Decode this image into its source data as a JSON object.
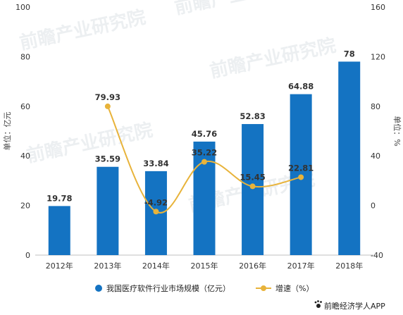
{
  "chart_data": {
    "type": "bar+line",
    "categories": [
      "2012年",
      "2013年",
      "2014年",
      "2015年",
      "2016年",
      "2017年",
      "2018年"
    ],
    "series": [
      {
        "name": "我国医疗软件行业市场规模（亿元）",
        "type": "bar",
        "axis": "left",
        "values": [
          19.78,
          35.59,
          33.84,
          45.76,
          52.83,
          64.88,
          78
        ],
        "labels": [
          "19.78",
          "35.59",
          "33.84",
          "45.76",
          "52.83",
          "64.88",
          "78"
        ],
        "color": "#1473C2"
      },
      {
        "name": "增速（%）",
        "type": "line",
        "axis": "right",
        "values": [
          null,
          79.93,
          -4.92,
          35.22,
          15.45,
          22.81,
          null
        ],
        "labels": [
          "",
          "79.93",
          "-4.92",
          "35.22",
          "15.45",
          "22.81",
          ""
        ],
        "color": "#E8B33A"
      }
    ],
    "ylabel": "单位：亿元",
    "y2label": "单位：%",
    "ylim": [
      0,
      100
    ],
    "yticks": [
      "0",
      "20",
      "40",
      "60",
      "80",
      "100"
    ],
    "y2lim": [
      -40,
      160
    ],
    "y2ticks": [
      "-40",
      "0",
      "40",
      "80",
      "120",
      "160"
    ],
    "legend_position": "bottom",
    "grid": false
  },
  "watermark": "前瞻产业研究院",
  "credit": {
    "icon": "paw-icon",
    "text": "前瞻经济学人APP"
  }
}
